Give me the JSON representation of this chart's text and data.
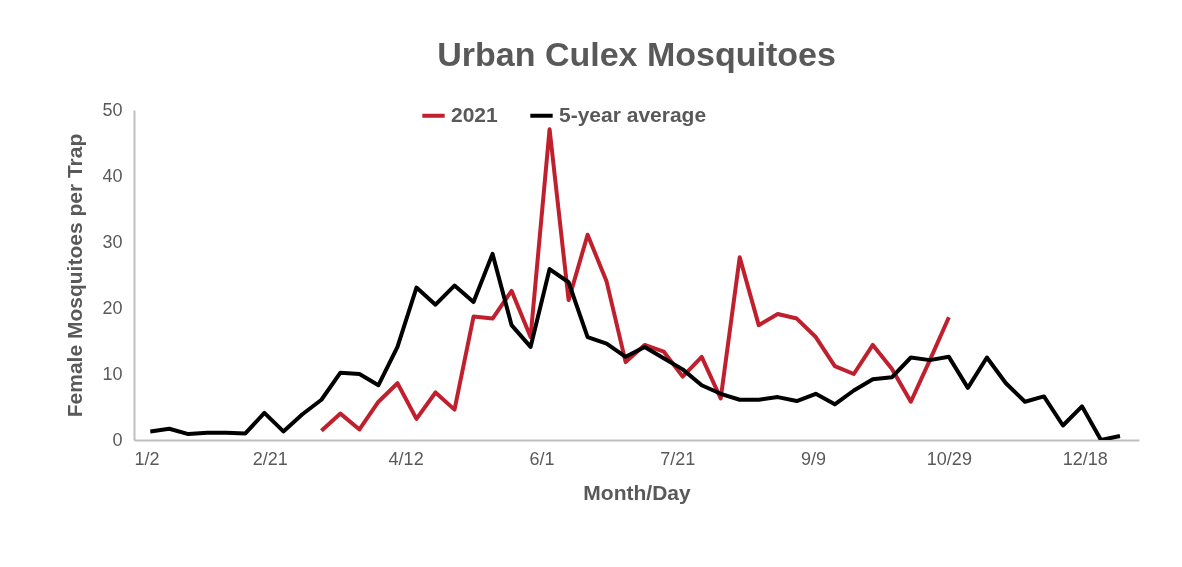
{
  "chart_data": {
    "type": "line",
    "title": "Urban Culex Mosquitoes",
    "xlabel": "Month/Day",
    "ylabel": "Female Mosquitoes per Trap",
    "xlim": [
      "2021-01-02",
      "2022-01-07"
    ],
    "xticks": [
      {
        "value": "2021-01-02",
        "label": "1/2"
      },
      {
        "value": "2021-02-21",
        "label": "2/21"
      },
      {
        "value": "2021-04-12",
        "label": "4/12"
      },
      {
        "value": "2021-06-01",
        "label": "6/1"
      },
      {
        "value": "2021-07-21",
        "label": "7/21"
      },
      {
        "value": "2021-09-09",
        "label": "9/9"
      },
      {
        "value": "2021-10-29",
        "label": "10/29"
      },
      {
        "value": "2021-12-18",
        "label": "12/18"
      }
    ],
    "ylim": [
      0,
      50
    ],
    "yticks": [
      0,
      10,
      20,
      30,
      40,
      50
    ],
    "legend": "top",
    "series": [
      {
        "name": "2021",
        "color": "#c0202e",
        "x": [
          "2021-03-12",
          "2021-03-19",
          "2021-03-26",
          "2021-04-02",
          "2021-04-09",
          "2021-04-16",
          "2021-04-23",
          "2021-04-30",
          "2021-05-07",
          "2021-05-14",
          "2021-05-21",
          "2021-05-28",
          "2021-06-04",
          "2021-06-11",
          "2021-06-18",
          "2021-06-25",
          "2021-07-02",
          "2021-07-09",
          "2021-07-16",
          "2021-07-23",
          "2021-07-30",
          "2021-08-06",
          "2021-08-13",
          "2021-08-20",
          "2021-08-27",
          "2021-09-03",
          "2021-09-10",
          "2021-09-17",
          "2021-09-24",
          "2021-10-01",
          "2021-10-08",
          "2021-10-15",
          "2021-10-22",
          "2021-10-29"
        ],
        "values": [
          1.4,
          4.0,
          1.6,
          5.8,
          8.6,
          3.2,
          7.2,
          4.6,
          18.7,
          18.4,
          22.6,
          15.6,
          47.1,
          21.2,
          31.1,
          24.0,
          11.8,
          14.4,
          13.4,
          9.6,
          12.6,
          6.3,
          27.7,
          17.4,
          19.1,
          18.4,
          15.6,
          11.2,
          10.0,
          14.4,
          10.8,
          5.8,
          12.1,
          18.6
        ]
      },
      {
        "name": "5-year average",
        "color": "#000000",
        "x": [
          "2021-01-08",
          "2021-01-15",
          "2021-01-22",
          "2021-01-29",
          "2021-02-05",
          "2021-02-12",
          "2021-02-19",
          "2021-02-26",
          "2021-03-05",
          "2021-03-12",
          "2021-03-19",
          "2021-03-26",
          "2021-04-02",
          "2021-04-09",
          "2021-04-16",
          "2021-04-23",
          "2021-04-30",
          "2021-05-07",
          "2021-05-14",
          "2021-05-21",
          "2021-05-28",
          "2021-06-04",
          "2021-06-11",
          "2021-06-18",
          "2021-06-25",
          "2021-07-02",
          "2021-07-09",
          "2021-07-16",
          "2021-07-23",
          "2021-07-30",
          "2021-08-06",
          "2021-08-13",
          "2021-08-20",
          "2021-08-27",
          "2021-09-03",
          "2021-09-10",
          "2021-09-17",
          "2021-09-24",
          "2021-10-01",
          "2021-10-08",
          "2021-10-15",
          "2021-10-22",
          "2021-10-29",
          "2021-11-05",
          "2021-11-12",
          "2021-11-19",
          "2021-11-26",
          "2021-12-03",
          "2021-12-10",
          "2021-12-17",
          "2021-12-24",
          "2021-12-31"
        ],
        "values": [
          1.3,
          1.7,
          0.9,
          1.1,
          1.1,
          1.0,
          4.1,
          1.3,
          3.9,
          6.1,
          10.2,
          10.0,
          8.3,
          14.1,
          23.1,
          20.5,
          23.4,
          20.9,
          28.2,
          17.4,
          14.1,
          25.9,
          23.9,
          15.6,
          14.6,
          12.6,
          14.1,
          12.4,
          10.7,
          8.3,
          7.0,
          6.1,
          6.1,
          6.5,
          5.9,
          7.0,
          5.4,
          7.5,
          9.2,
          9.5,
          12.5,
          12.1,
          12.6,
          7.9,
          12.5,
          8.6,
          5.8,
          6.6,
          2.2,
          5.1,
          0,
          0.6
        ]
      }
    ]
  }
}
